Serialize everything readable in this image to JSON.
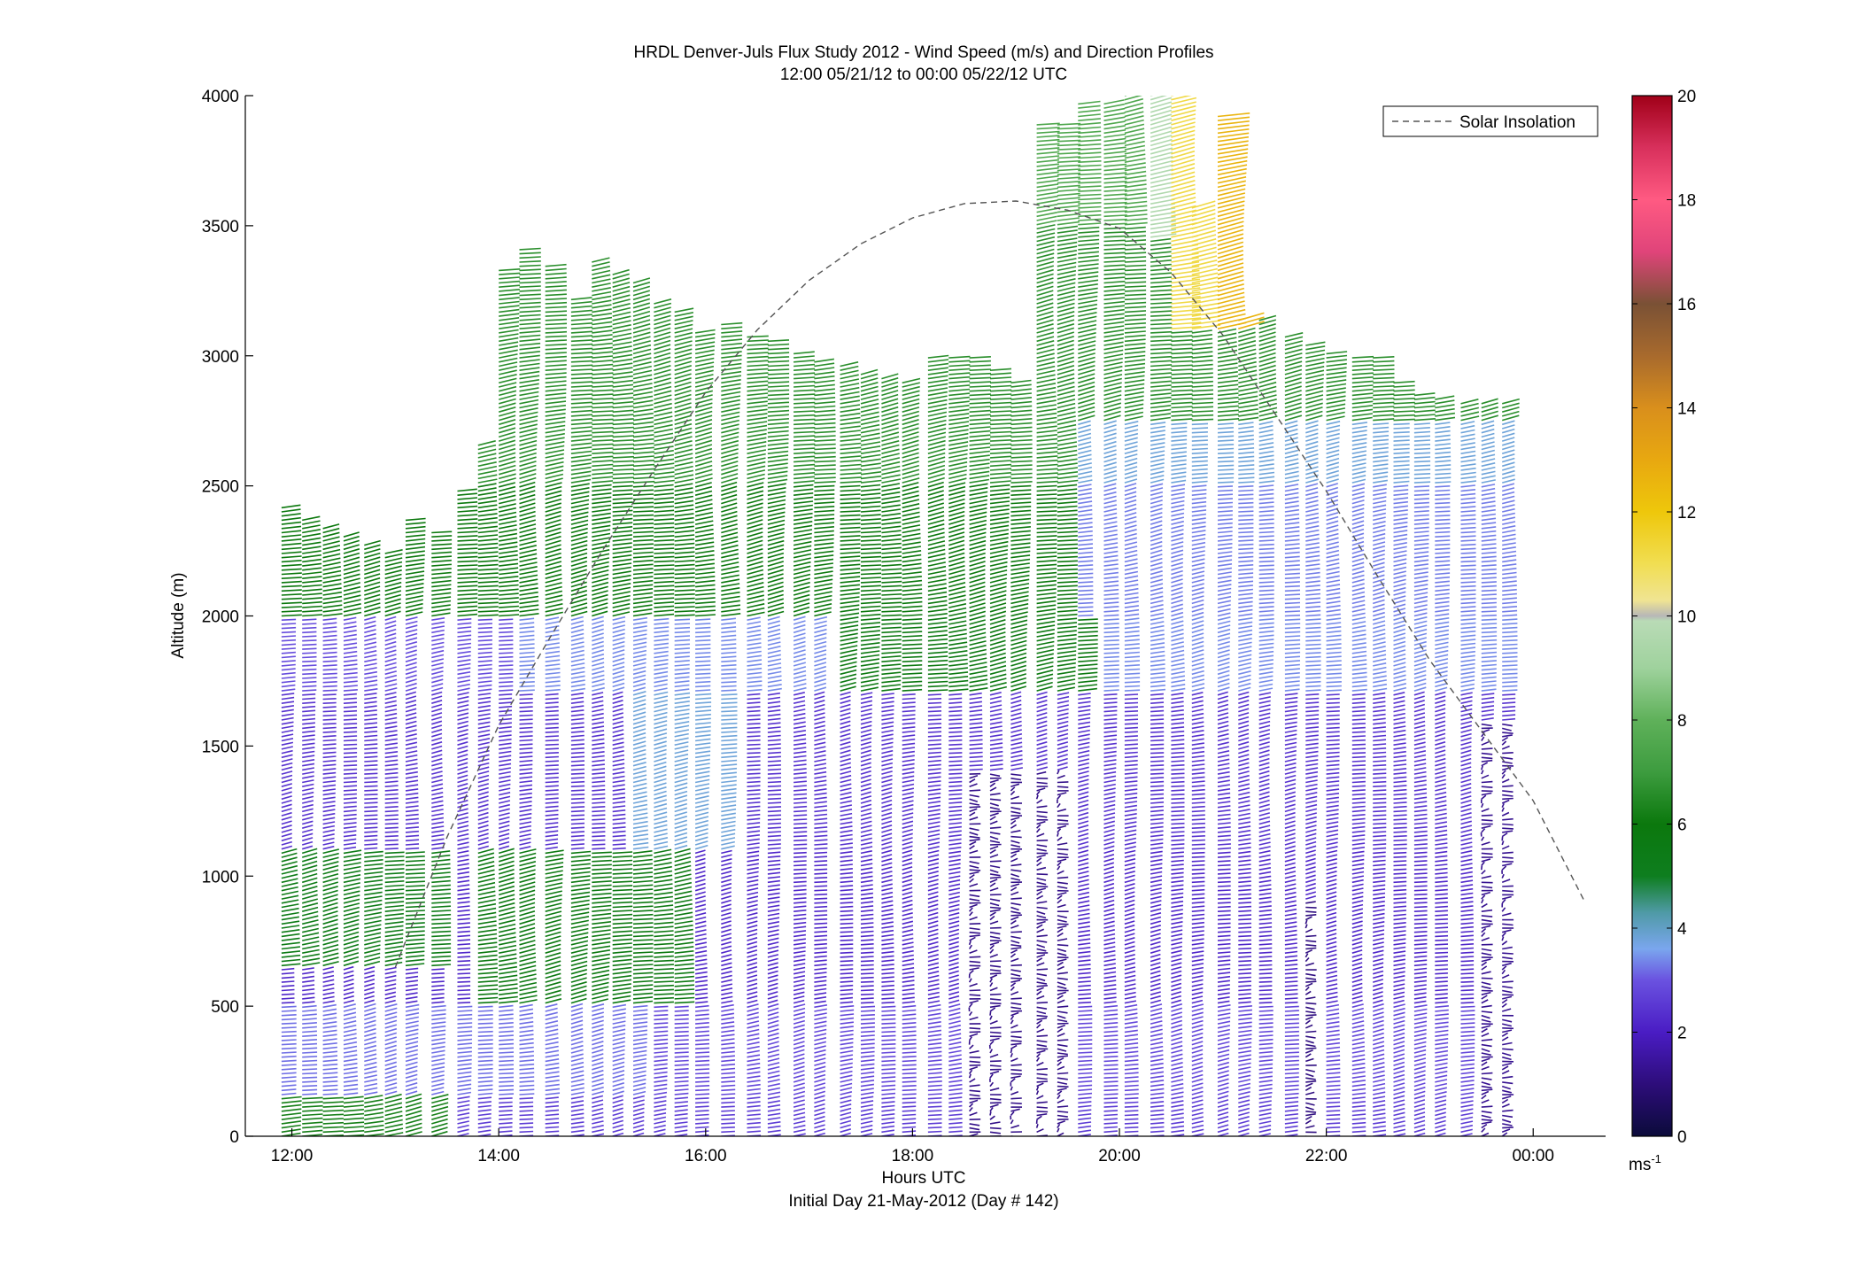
{
  "chart_data": {
    "type": "wind-barb-profile",
    "title": "HRDL Denver-Juls Flux Study 2012 - Wind Speed (m/s) and Direction Profiles",
    "subtitle": "12:00 05/21/12 to 00:00 05/22/12  UTC",
    "xlabel": "Hours UTC",
    "xlabel2": "Initial Day 21-May-2012 (Day # 142)",
    "ylabel": "Altitude (m)",
    "x_ticks": [
      "12:00",
      "14:00",
      "16:00",
      "18:00",
      "20:00",
      "22:00",
      "00:00"
    ],
    "x_tick_hours": [
      12,
      14,
      16,
      18,
      20,
      22,
      24
    ],
    "xlim_hours": [
      11.55,
      24.7
    ],
    "y_ticks": [
      "0",
      "500",
      "1000",
      "1500",
      "2000",
      "2500",
      "3000",
      "3500",
      "4000"
    ],
    "ylim": [
      0,
      4000
    ],
    "colorbar": {
      "range": [
        0,
        20
      ],
      "ticks": [
        "0",
        "2",
        "4",
        "6",
        "8",
        "10",
        "12",
        "14",
        "16",
        "18",
        "20"
      ],
      "unit_base": "ms",
      "unit_exp": "-1",
      "stops": [
        {
          "v": 0,
          "c": "#0b0b3a"
        },
        {
          "v": 1,
          "c": "#2d0d7a"
        },
        {
          "v": 2,
          "c": "#4a1cc4"
        },
        {
          "v": 3,
          "c": "#6a52e0"
        },
        {
          "v": 3.6,
          "c": "#7aa6ee"
        },
        {
          "v": 4.3,
          "c": "#4f9aa6"
        },
        {
          "v": 5,
          "c": "#0e7e1f"
        },
        {
          "v": 6,
          "c": "#0b780d"
        },
        {
          "v": 7,
          "c": "#3d9c3f"
        },
        {
          "v": 8,
          "c": "#5fb15a"
        },
        {
          "v": 9,
          "c": "#9fd29d"
        },
        {
          "v": 9.9,
          "c": "#b9dbb6"
        },
        {
          "v": 10,
          "c": "#b7b7b7"
        },
        {
          "v": 10.3,
          "c": "#f0e492"
        },
        {
          "v": 11,
          "c": "#f1de52"
        },
        {
          "v": 12,
          "c": "#eec70b"
        },
        {
          "v": 13,
          "c": "#e8a810"
        },
        {
          "v": 14,
          "c": "#d98f1c"
        },
        {
          "v": 15,
          "c": "#a86a2d"
        },
        {
          "v": 16,
          "c": "#7a5135"
        },
        {
          "v": 17,
          "c": "#e0447a"
        },
        {
          "v": 18,
          "c": "#ff5a82"
        },
        {
          "v": 19,
          "c": "#d8305c"
        },
        {
          "v": 20,
          "c": "#a00018"
        }
      ]
    },
    "legend": {
      "entries": [
        "Solar Insolation"
      ],
      "placement": "top-right"
    },
    "overlay_solar_curve": {
      "hours": [
        13.0,
        13.5,
        14.0,
        14.5,
        15.0,
        15.5,
        16.0,
        16.5,
        17.0,
        17.5,
        18.0,
        18.5,
        19.0,
        19.5,
        20.0,
        20.5,
        21.0,
        21.5,
        22.0,
        22.5,
        23.0,
        23.5,
        24.0,
        24.5
      ],
      "altitude_m": [
        650,
        1150,
        1580,
        1920,
        2250,
        2560,
        2860,
        3100,
        3290,
        3430,
        3530,
        3585,
        3595,
        3560,
        3490,
        3320,
        3080,
        2780,
        2480,
        2150,
        1830,
        1560,
        1290,
        900
      ]
    },
    "profiles_hours": [
      11.9,
      12.1,
      12.3,
      12.5,
      12.7,
      12.9,
      13.1,
      13.35,
      13.6,
      13.8,
      14.0,
      14.2,
      14.45,
      14.7,
      14.9,
      15.1,
      15.3,
      15.5,
      15.7,
      15.9,
      16.15,
      16.4,
      16.6,
      16.85,
      17.05,
      17.3,
      17.5,
      17.7,
      17.9,
      18.15,
      18.35,
      18.55,
      18.75,
      18.95,
      19.2,
      19.4,
      19.6,
      19.85,
      20.05,
      20.3,
      20.5,
      20.7,
      20.95,
      21.15,
      21.35,
      21.6,
      21.8,
      22.0,
      22.25,
      22.45,
      22.65,
      22.85,
      23.05,
      23.3,
      23.5,
      23.7
    ],
    "profiles_top_altitude_m": [
      2420,
      2380,
      2340,
      2310,
      2280,
      2250,
      2380,
      2330,
      2480,
      2660,
      3330,
      3420,
      3350,
      3220,
      3360,
      3320,
      3280,
      3200,
      3180,
      3100,
      3120,
      3080,
      3060,
      3020,
      2980,
      2960,
      2940,
      2920,
      2900,
      3000,
      3000,
      3000,
      2950,
      2900,
      3900,
      3900,
      3980,
      3980,
      4000,
      4000,
      4000,
      3580,
      3920,
      3150,
      3150,
      3080,
      3040,
      3020,
      3000,
      3000,
      2900,
      2860,
      2840,
      2820,
      2820,
      2820
    ]
  }
}
